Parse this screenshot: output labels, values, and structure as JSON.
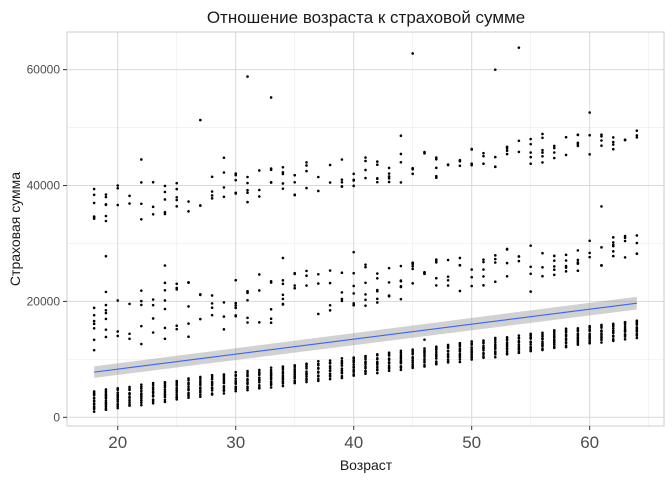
{
  "chart_data": {
    "type": "scatter",
    "title": "Отношение возраста к страховой сумме",
    "xlabel": "Возраст",
    "ylabel": "Страховая сумма",
    "xlim": [
      15.7,
      66.3
    ],
    "ylim": [
      -1500,
      66500
    ],
    "x_ticks": [
      20,
      30,
      40,
      50,
      60
    ],
    "y_ticks": [
      0,
      20000,
      40000,
      60000
    ],
    "y_tick_labels": [
      "0",
      "20000",
      "40000",
      "60000"
    ],
    "grid": true,
    "point_color": "#000000",
    "trend_color": "#3366FF",
    "ribbon_color": "#999999",
    "trend": {
      "method": "linear",
      "x": [
        18,
        64
      ],
      "y": [
        7800,
        19700
      ],
      "se_halfwidth": [
        1000,
        1100
      ]
    },
    "clusters": {
      "low": {
        "x_range": [
          18,
          64
        ],
        "y_start": [
          1100,
          4500
        ],
        "y_end": [
          13800,
          16800
        ]
      },
      "mid": {
        "x_range": [
          18,
          64
        ],
        "y_start": [
          11000,
          22000
        ],
        "y_end": [
          27000,
          31500
        ]
      },
      "high": {
        "x_range": [
          18,
          64
        ],
        "y_start": [
          33000,
          40000
        ],
        "y_end": [
          46000,
          50000
        ]
      }
    },
    "outliers": [
      [
        27,
        51300
      ],
      [
        29,
        44800
      ],
      [
        31,
        58800
      ],
      [
        33,
        55200
      ],
      [
        36,
        44000
      ],
      [
        45,
        62800
      ],
      [
        52,
        60000
      ],
      [
        54,
        63800
      ],
      [
        60,
        52600
      ],
      [
        44,
        48600
      ],
      [
        56,
        48900
      ],
      [
        61,
        36400
      ],
      [
        49,
        44200
      ],
      [
        42,
        43600
      ],
      [
        22,
        44500
      ],
      [
        34,
        27500
      ],
      [
        40,
        28500
      ],
      [
        24,
        26200
      ],
      [
        19,
        27800
      ],
      [
        46,
        13400
      ],
      [
        55,
        21700
      ],
      [
        59,
        25300
      ]
    ]
  }
}
